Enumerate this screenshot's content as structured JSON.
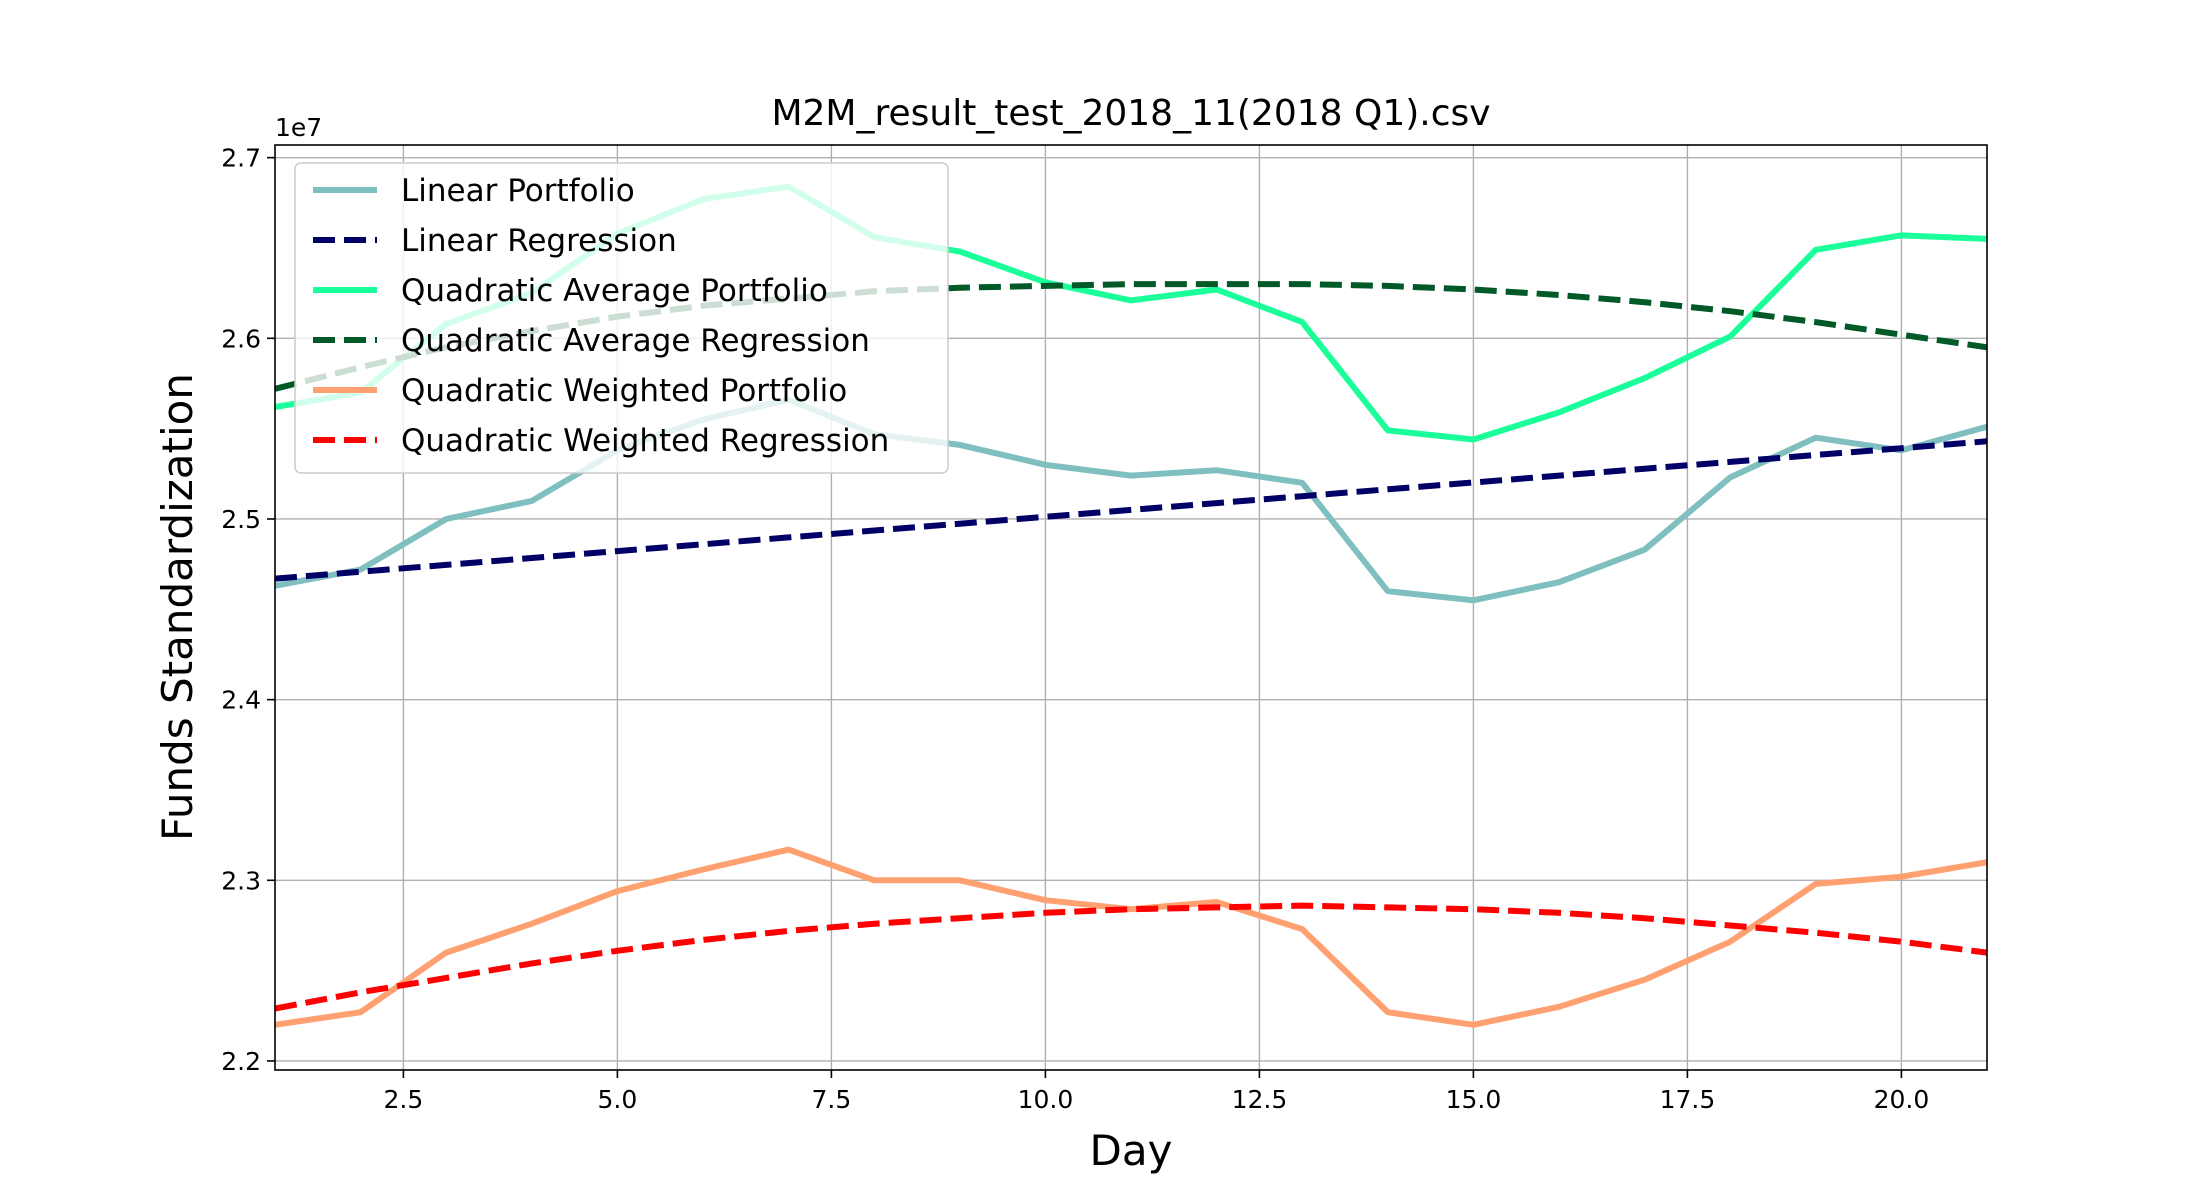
{
  "chart_data": {
    "type": "line",
    "title": "M2M_result_test_2018_11(2018 Q1).csv",
    "xlabel": "Day",
    "ylabel": "Funds Standardization",
    "y_offset_label": "1e7",
    "xlim": [
      1,
      21
    ],
    "ylim": [
      2.195,
      2.707
    ],
    "x_ticks": [
      2.5,
      5.0,
      7.5,
      10.0,
      12.5,
      15.0,
      17.5,
      20.0
    ],
    "x_tick_labels": [
      "2.5",
      "5.0",
      "7.5",
      "10.0",
      "12.5",
      "15.0",
      "17.5",
      "20.0"
    ],
    "y_ticks": [
      2.2,
      2.3,
      2.4,
      2.5,
      2.6,
      2.7
    ],
    "y_tick_labels": [
      "2.2",
      "2.3",
      "2.4",
      "2.5",
      "2.6",
      "2.7"
    ],
    "grid": true,
    "legend_position": "top-left",
    "x": [
      1,
      2,
      3,
      4,
      5,
      6,
      7,
      8,
      9,
      10,
      11,
      12,
      13,
      14,
      15,
      16,
      17,
      18,
      19,
      20,
      21
    ],
    "series": [
      {
        "name": "Linear Portfolio",
        "color": "#7fbfbf",
        "style": "solid",
        "values": [
          2.463,
          2.472,
          2.5,
          2.51,
          2.538,
          2.555,
          2.566,
          2.547,
          2.541,
          2.53,
          2.524,
          2.527,
          2.52,
          2.46,
          2.455,
          2.465,
          2.483,
          2.523,
          2.545,
          2.538,
          2.551
        ]
      },
      {
        "name": "Linear Regression",
        "color": "#000066",
        "style": "dashed",
        "values": [
          2.467,
          2.4708,
          2.4746,
          2.4784,
          2.4822,
          2.486,
          2.4898,
          2.4936,
          2.4974,
          2.5012,
          2.505,
          2.5088,
          2.5126,
          2.5164,
          2.5202,
          2.524,
          2.5278,
          2.5316,
          2.5354,
          2.5392,
          2.543
        ]
      },
      {
        "name": "Quadratic Average Portfolio",
        "color": "#1aff99",
        "style": "solid",
        "values": [
          2.562,
          2.57,
          2.608,
          2.625,
          2.658,
          2.677,
          2.684,
          2.656,
          2.648,
          2.631,
          2.621,
          2.627,
          2.609,
          2.549,
          2.544,
          2.559,
          2.578,
          2.601,
          2.649,
          2.657,
          2.655
        ]
      },
      {
        "name": "Quadratic Average Regression",
        "color": "#005926",
        "style": "dashed",
        "values": [
          2.572,
          2.584,
          2.595,
          2.604,
          2.612,
          2.618,
          2.622,
          2.626,
          2.628,
          2.629,
          2.63,
          2.63,
          2.63,
          2.629,
          2.627,
          2.624,
          2.62,
          2.615,
          2.609,
          2.602,
          2.595
        ]
      },
      {
        "name": "Quadratic Weighted Portfolio",
        "color": "#ffa070",
        "style": "solid",
        "values": [
          2.22,
          2.227,
          2.26,
          2.276,
          2.294,
          2.306,
          2.317,
          2.3,
          2.3,
          2.289,
          2.284,
          2.288,
          2.273,
          2.227,
          2.22,
          2.23,
          2.245,
          2.266,
          2.298,
          2.302,
          2.31
        ]
      },
      {
        "name": "Quadratic Weighted Regression",
        "color": "#ff0000",
        "style": "dashed",
        "values": [
          2.229,
          2.238,
          2.246,
          2.254,
          2.261,
          2.267,
          2.272,
          2.276,
          2.279,
          2.282,
          2.284,
          2.285,
          2.286,
          2.285,
          2.284,
          2.282,
          2.279,
          2.275,
          2.271,
          2.266,
          2.26
        ]
      }
    ]
  }
}
